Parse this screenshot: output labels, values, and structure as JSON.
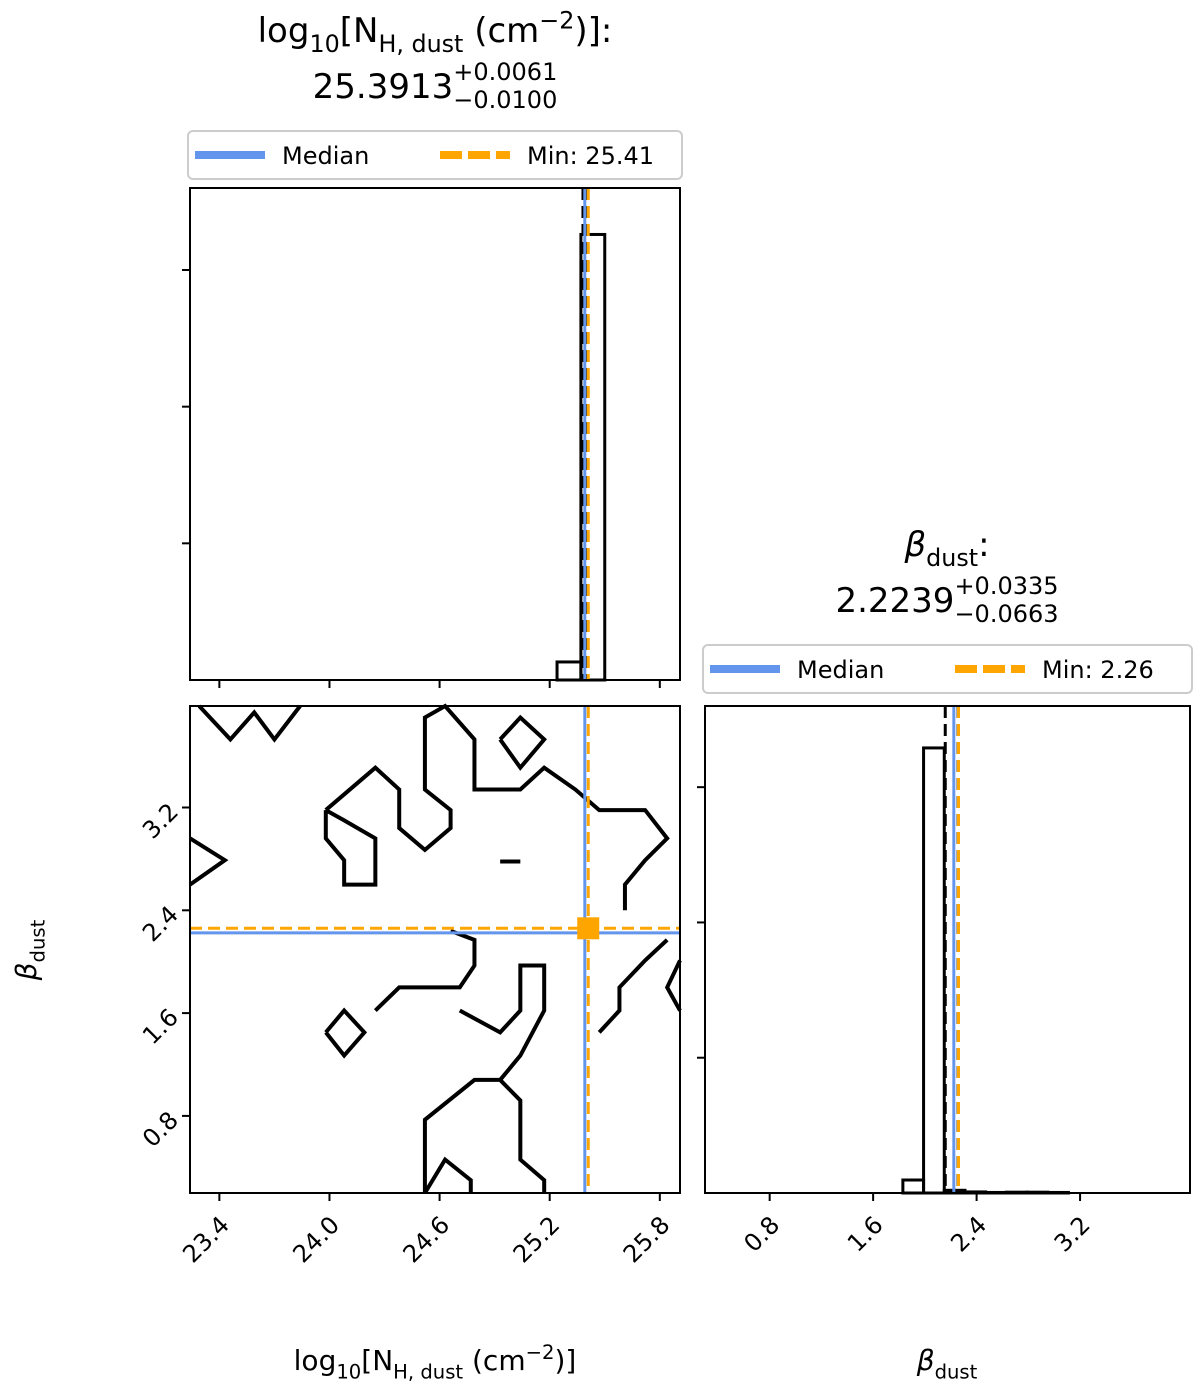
{
  "chart_data": [
    {
      "type": "histogram",
      "title_parts": [
        {
          "text": "log"
        },
        {
          "text": "10",
          "style": "sub"
        },
        {
          "text": "[N"
        },
        {
          "text": "H, dust",
          "style": "sub"
        },
        {
          "text": " (cm"
        },
        {
          "text": "−2",
          "style": "sup"
        },
        {
          "text": ")]"
        }
      ],
      "title_separator": ":",
      "median": 25.3913,
      "plus_error": {
        "value": 0.0061,
        "label": "+0.0061"
      },
      "minus_error": {
        "value": -0.01,
        "label": "−0.0100"
      },
      "min": 25.41,
      "quantiles": [
        25.3813,
        25.3974
      ],
      "legend": [
        {
          "name": "Median",
          "color": "#6495ed"
        },
        {
          "name": "Min: 25.41",
          "color": "#ffa500"
        }
      ],
      "bins": [
        25.11,
        25.24,
        25.37,
        25.5
      ],
      "counts": [
        0,
        0.066,
        1.63
      ],
      "xlim": [
        23.24,
        25.91
      ],
      "ylim": [
        0,
        1.8
      ],
      "yticks": [
        0.5,
        1.0,
        1.5
      ]
    },
    {
      "type": "contour",
      "xlim": [
        23.24,
        25.91
      ],
      "ylim": [
        0.2,
        3.99
      ],
      "xticks": [
        23.4,
        {
          "value": 24,
          "label": "24.0"
        },
        24.6,
        25.2,
        25.8
      ],
      "yticks": [
        0.8,
        1.6,
        2.4,
        3.2
      ],
      "contours": [
        {
          "x": [
            23.29,
            23.46,
            23.59,
            23.7,
            23.84
          ],
          "y": [
            3.99,
            3.73,
            3.94,
            3.73,
            3.99
          ]
        },
        {
          "x": [
            23.24,
            23.43,
            23.24
          ],
          "y": [
            2.96,
            2.79,
            2.6
          ]
        },
        {
          "x": [
            23.98,
            24.25,
            24.38,
            24.38,
            24.52,
            24.66,
            24.66,
            24.52,
            24.52,
            24.63,
            24.79,
            24.79,
            25.04,
            25.17,
            25.34,
            25.47,
            25.72,
            25.84,
            25.72,
            25.61,
            25.61
          ],
          "y": [
            3.18,
            3.51,
            3.34,
            3.04,
            2.87,
            3.04,
            3.18,
            3.34,
            3.9,
            3.99,
            3.73,
            3.34,
            3.34,
            3.51,
            3.34,
            3.18,
            3.18,
            2.96,
            2.79,
            2.6,
            2.4
          ]
        },
        {
          "x": [
            23.98,
            23.98,
            24.08,
            24.08,
            24.25,
            24.25,
            24.08,
            23.98
          ],
          "y": [
            3.18,
            2.96,
            2.79,
            2.6,
            2.6,
            2.96,
            3.1,
            3.18
          ]
        },
        {
          "x": [
            24.93,
            25.04,
            25.17,
            25.04,
            24.93
          ],
          "y": [
            3.73,
            3.9,
            3.73,
            3.51,
            3.73
          ]
        },
        {
          "x": [
            24.93,
            25.04
          ],
          "y": [
            2.78,
            2.78
          ]
        },
        {
          "x": [
            24.25,
            24.38,
            24.71,
            24.79,
            24.79,
            24.66
          ],
          "y": [
            1.62,
            1.8,
            1.8,
            1.97,
            2.17,
            2.24
          ]
        },
        {
          "x": [
            24.71,
            24.93,
            25.04,
            25.04,
            25.17,
            25.17,
            25.04,
            24.93
          ],
          "y": [
            1.62,
            1.45,
            1.62,
            1.97,
            1.97,
            1.62,
            1.27,
            1.08
          ]
        },
        {
          "x": [
            23.98,
            24.08,
            24.19,
            24.08,
            23.98
          ],
          "y": [
            1.45,
            1.62,
            1.45,
            1.27,
            1.45
          ]
        },
        {
          "x": [
            24.52,
            24.52,
            24.79,
            24.93,
            25.04,
            25.04,
            25.17,
            25.17
          ],
          "y": [
            0.2,
            0.77,
            1.08,
            1.08,
            0.92,
            0.46,
            0.3,
            0.2
          ]
        },
        {
          "x": [
            24.52,
            24.63,
            24.77,
            24.77
          ],
          "y": [
            0.2,
            0.46,
            0.3,
            0.2
          ]
        },
        {
          "x": [
            25.91,
            25.84,
            25.91
          ],
          "y": [
            2.01,
            1.8,
            1.62
          ]
        },
        {
          "x": [
            25.47,
            25.58,
            25.58,
            25.72,
            25.84
          ],
          "y": [
            1.45,
            1.62,
            1.8,
            2.01,
            2.17
          ]
        }
      ]
    },
    {
      "type": "histogram",
      "title_parts": [
        {
          "text": "β",
          "style": "italic"
        },
        {
          "text": "dust",
          "style": "sub"
        }
      ],
      "title_separator": ":",
      "median": 2.2239,
      "plus_error": {
        "value": 0.0335,
        "label": "+0.0335"
      },
      "minus_error": {
        "value": -0.0663,
        "label": "−0.0663"
      },
      "min": 2.26,
      "quantiles": [
        2.1576,
        2.2574
      ],
      "legend": [
        {
          "name": "Median",
          "color": "#6495ed"
        },
        {
          "name": "Min: 2.26",
          "color": "#ffa500"
        }
      ],
      "bins": [
        1.83,
        1.99,
        2.15,
        2.31,
        2.47,
        2.63,
        2.79,
        2.95,
        3.11
      ],
      "counts": [
        0.048,
        1.645,
        0.01,
        0.004,
        0.002,
        0.003,
        0.003,
        0.002
      ],
      "xlim": [
        0.3,
        4.05
      ],
      "ylim": [
        0,
        1.8
      ],
      "yticks": [
        0.5,
        1.0,
        1.5
      ],
      "xticks": [
        0.8,
        1.6,
        2.4,
        3.2
      ]
    }
  ]
}
